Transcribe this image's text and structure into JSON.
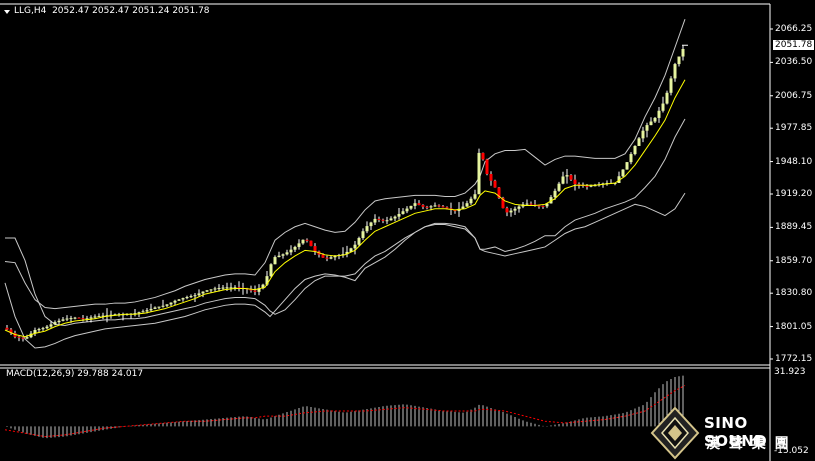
{
  "main": {
    "symbol_line": "LLG,H4  2052.47 2052.47 2051.24 2051.78",
    "price_label": "2051.78",
    "y_ticks": [
      "2066.25",
      "2036.50",
      "2006.75",
      "1977.85",
      "1948.10",
      "1919.20",
      "1889.45",
      "1859.70",
      "1830.80",
      "1801.05",
      "1772.15"
    ]
  },
  "sub": {
    "indicator_line": "MACD(12,26,9) 29.788 24.017",
    "top_value": "31.923",
    "bottom_value": "-15.052"
  },
  "brand": {
    "name": "SINO SOUND",
    "cjk": "漢 聲 集 團"
  },
  "colors": {
    "background": "#000000",
    "bull": "#e6f4a0",
    "bear": "#ff0000",
    "ma": "#ffff00",
    "bands": "#c8c8c8",
    "macd_hist": "#c0c0c0",
    "macd_signal": "#ff0000"
  },
  "chart_data": {
    "type": "line",
    "x": [
      0,
      10,
      20,
      30,
      40,
      50,
      60,
      70,
      80,
      90,
      100,
      110,
      120,
      130,
      140,
      150,
      160,
      170,
      180,
      190,
      200,
      210,
      220,
      230,
      240,
      250,
      260,
      265,
      270,
      280,
      290,
      300,
      310,
      320,
      330,
      340,
      350,
      360,
      370,
      380,
      390,
      400,
      410,
      420,
      430,
      440,
      450,
      460,
      470,
      475,
      480,
      490,
      500,
      510,
      520,
      530,
      540,
      550,
      560,
      570,
      580,
      590,
      600,
      610,
      620,
      630,
      640,
      650,
      660,
      670,
      680
    ],
    "series": [
      {
        "role": "price",
        "values": [
          1800,
          1792,
          1790,
          1798,
          1800,
          1805,
          1808,
          1809,
          1808,
          1810,
          1811,
          1812,
          1812,
          1813,
          1815,
          1818,
          1820,
          1824,
          1827,
          1829,
          1833,
          1835,
          1836,
          1836,
          1835,
          1832,
          1840,
          1855,
          1863,
          1866,
          1872,
          1880,
          1868,
          1861,
          1864,
          1866,
          1874,
          1889,
          1897,
          1895,
          1899,
          1905,
          1911,
          1907,
          1909,
          1907,
          1904,
          1909,
          1919,
          1965,
          1940,
          1925,
          1902,
          1906,
          1911,
          1909,
          1908,
          1922,
          1938,
          1928,
          1926,
          1927,
          1929,
          1929,
          1944,
          1962,
          1979,
          1987,
          2003,
          2035,
          2051.78
        ]
      },
      {
        "role": "ma",
        "values": [
          1798,
          1794,
          1792,
          1795,
          1797,
          1801,
          1804,
          1806,
          1807,
          1808,
          1810,
          1811,
          1812,
          1812,
          1813,
          1815,
          1817,
          1820,
          1823,
          1826,
          1830,
          1832,
          1834,
          1835,
          1835,
          1834,
          1836,
          1843,
          1850,
          1858,
          1864,
          1869,
          1868,
          1865,
          1864,
          1865,
          1869,
          1878,
          1886,
          1890,
          1894,
          1898,
          1902,
          1904,
          1906,
          1906,
          1905,
          1906,
          1910,
          1918,
          1922,
          1920,
          1913,
          1910,
          1909,
          1909,
          1910,
          1915,
          1924,
          1927,
          1927,
          1927,
          1928,
          1929,
          1935,
          1945,
          1958,
          1971,
          1985,
          2005,
          2021
        ]
      },
      {
        "role": "upper",
        "values": [
          1859,
          1858,
          1840,
          1825,
          1818,
          1817,
          1818,
          1819,
          1820,
          1821,
          1821,
          1822,
          1822,
          1823,
          1825,
          1827,
          1830,
          1833,
          1837,
          1840,
          1843,
          1845,
          1847,
          1848,
          1848,
          1847,
          1858,
          1868,
          1878,
          1885,
          1890,
          1893,
          1890,
          1887,
          1885,
          1886,
          1894,
          1905,
          1913,
          1915,
          1916,
          1917,
          1918,
          1918,
          1918,
          1917,
          1917,
          1920,
          1928,
          1935,
          1948,
          1955,
          1958,
          1958,
          1959,
          1952,
          1945,
          1950,
          1953,
          1953,
          1952,
          1951,
          1951,
          1951,
          1955,
          1968,
          1988,
          2005,
          2025,
          2050,
          2075
        ]
      },
      {
        "role": "lower",
        "values": [
          1840,
          1810,
          1790,
          1782,
          1783,
          1786,
          1790,
          1793,
          1795,
          1797,
          1799,
          1800,
          1801,
          1802,
          1803,
          1804,
          1806,
          1808,
          1810,
          1813,
          1816,
          1818,
          1820,
          1821,
          1821,
          1820,
          1814,
          1810,
          1815,
          1825,
          1835,
          1843,
          1846,
          1848,
          1847,
          1845,
          1842,
          1853,
          1858,
          1863,
          1870,
          1878,
          1885,
          1890,
          1893,
          1893,
          1892,
          1890,
          1880,
          1870,
          1870,
          1872,
          1868,
          1870,
          1873,
          1877,
          1882,
          1882,
          1890,
          1896,
          1899,
          1902,
          1906,
          1909,
          1912,
          1916,
          1925,
          1935,
          1950,
          1970,
          1986
        ]
      },
      {
        "role": "outer",
        "values": [
          1880,
          1880,
          1860,
          1830,
          1810,
          1803,
          1802,
          1804,
          1805,
          1806,
          1807,
          1807,
          1808,
          1808,
          1809,
          1811,
          1813,
          1815,
          1817,
          1819,
          1822,
          1824,
          1826,
          1827,
          1827,
          1826,
          1820,
          1815,
          1812,
          1816,
          1825,
          1835,
          1842,
          1846,
          1846,
          1846,
          1848,
          1857,
          1864,
          1868,
          1874,
          1880,
          1885,
          1890,
          1892,
          1892,
          1890,
          1888,
          1880,
          1870,
          1868,
          1866,
          1864,
          1866,
          1868,
          1870,
          1872,
          1878,
          1884,
          1888,
          1890,
          1894,
          1898,
          1902,
          1906,
          1910,
          1908,
          1904,
          1900,
          1906,
          1920
        ]
      }
    ],
    "macd": {
      "x": [
        0,
        20,
        40,
        60,
        80,
        100,
        120,
        140,
        160,
        180,
        200,
        220,
        240,
        250,
        260,
        280,
        300,
        320,
        340,
        360,
        380,
        400,
        420,
        440,
        460,
        470,
        475,
        480,
        500,
        520,
        540,
        560,
        580,
        600,
        620,
        640,
        650,
        660,
        670,
        680
      ],
      "hist": [
        0,
        -4,
        -7,
        -6,
        -4,
        -2,
        0,
        1,
        2,
        3,
        4,
        5,
        6,
        5,
        4,
        8,
        12,
        10,
        8,
        10,
        12,
        13,
        11,
        9,
        8,
        11,
        13,
        12,
        8,
        3,
        0,
        2,
        5,
        6,
        8,
        13,
        20,
        26,
        29,
        30
      ],
      "signal": [
        -2,
        -4,
        -6,
        -5,
        -3,
        -1,
        0,
        1,
        2,
        3,
        3,
        4,
        5,
        5,
        6,
        6,
        8,
        9,
        9,
        9,
        10,
        11,
        10,
        9,
        9,
        9,
        10,
        10,
        9,
        6,
        3,
        2,
        3,
        4,
        6,
        9,
        13,
        17,
        21,
        24
      ]
    }
  }
}
